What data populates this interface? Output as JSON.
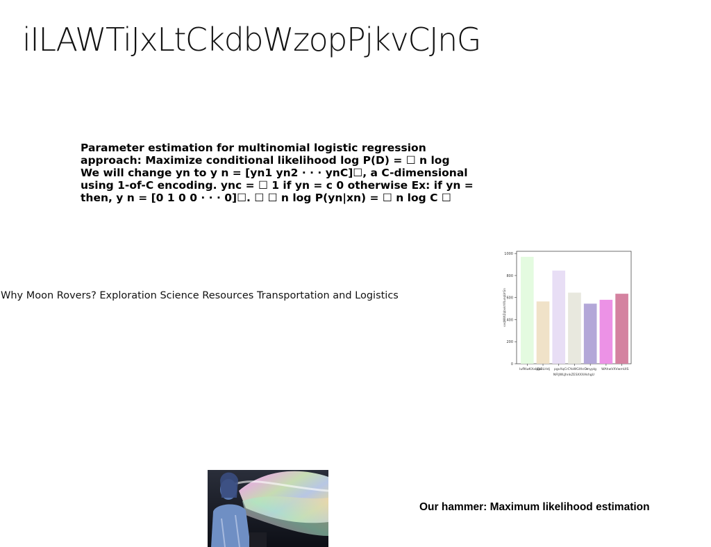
{
  "title": "iILAWTiJxLtCkdbWzopPjkvCJnG",
  "paragraph": {
    "lines": [
      "Parameter estimation for multinomial logistic regression",
      "approach: Maximize conditional likelihood log P(D) = ☐ n log",
      "We will change yn to y n = [yn1 yn2 · · · ynC]☐, a C-dimensional",
      "using 1-of-C encoding. ync = ☐ 1 if yn = c 0 otherwise Ex: if yn =",
      "then, y n = [0 1 0 0 · · · 0]☐. ☐ ☐ n log P(yn|xn) = ☐ n log C ☐"
    ]
  },
  "subtitle": "Why Moon Rovers? Exploration Science Resources Transportation and Logistics",
  "hammer": "Our hammer: Maximum likelihood estimation",
  "chart_data": {
    "type": "bar",
    "categories": [
      "IuflKwKXxbEo",
      "jgIBLHdj",
      "pgvXqCrC",
      "YoWGXtcOr",
      "imyplg",
      "WAhwVXVwmUlS",
      "NFIJWLJhnkZESXXXAkhgU"
    ],
    "values": [
      970,
      565,
      845,
      645,
      545,
      580,
      635
    ],
    "colors": [
      "#e4fbe0",
      "#f0e2c8",
      "#e8def5",
      "#e8e8de",
      "#b3a7d8",
      "#ec92e6",
      "#d482a0"
    ],
    "xlabel": "NFIJWLJhnkZESXXXAkhgU",
    "ylabel": "vvqNWtZqbvkrVXunqUrGn",
    "yticks": [
      0,
      200,
      400,
      600,
      800,
      1000
    ],
    "ylim": [
      0,
      1020
    ]
  }
}
